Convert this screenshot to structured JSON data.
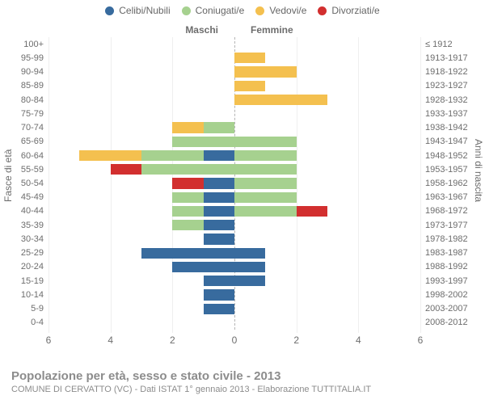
{
  "legend": {
    "items": [
      {
        "label": "Celibi/Nubili",
        "color": "#386b9e"
      },
      {
        "label": "Coniugati/e",
        "color": "#a6d18f"
      },
      {
        "label": "Vedovi/e",
        "color": "#f4c04f"
      },
      {
        "label": "Divorziati/e",
        "color": "#d22f2f"
      }
    ]
  },
  "chart": {
    "type": "population-pyramid",
    "header_male": "Maschi",
    "header_female": "Femmine",
    "y_title_left": "Fasce di età",
    "y_title_right": "Anni di nascita",
    "xlim": 6,
    "x_ticks": [
      6,
      4,
      2,
      0,
      2,
      4,
      6
    ],
    "x_tick_labels": [
      "6",
      "4",
      "2",
      "0",
      "2",
      "4",
      "6"
    ],
    "grid_color": "#efefef",
    "center_line_color": "#b5b5b5",
    "background_color": "#ffffff",
    "text_color": "#6d6d6d",
    "categories_colors": {
      "single": "#386b9e",
      "married": "#a6d18f",
      "widowed": "#f4c04f",
      "divorced": "#d22f2f"
    },
    "rows": [
      {
        "age": "100+",
        "birth": "≤ 1912",
        "m": {
          "single": 0,
          "married": 0,
          "widowed": 0,
          "divorced": 0
        },
        "f": {
          "single": 0,
          "married": 0,
          "widowed": 0,
          "divorced": 0
        }
      },
      {
        "age": "95-99",
        "birth": "1913-1917",
        "m": {
          "single": 0,
          "married": 0,
          "widowed": 0,
          "divorced": 0
        },
        "f": {
          "single": 0,
          "married": 0,
          "widowed": 1,
          "divorced": 0
        }
      },
      {
        "age": "90-94",
        "birth": "1918-1922",
        "m": {
          "single": 0,
          "married": 0,
          "widowed": 0,
          "divorced": 0
        },
        "f": {
          "single": 0,
          "married": 0,
          "widowed": 2,
          "divorced": 0
        }
      },
      {
        "age": "85-89",
        "birth": "1923-1927",
        "m": {
          "single": 0,
          "married": 0,
          "widowed": 0,
          "divorced": 0
        },
        "f": {
          "single": 0,
          "married": 0,
          "widowed": 1,
          "divorced": 0
        }
      },
      {
        "age": "80-84",
        "birth": "1928-1932",
        "m": {
          "single": 0,
          "married": 0,
          "widowed": 0,
          "divorced": 0
        },
        "f": {
          "single": 0,
          "married": 0,
          "widowed": 3,
          "divorced": 0
        }
      },
      {
        "age": "75-79",
        "birth": "1933-1937",
        "m": {
          "single": 0,
          "married": 0,
          "widowed": 0,
          "divorced": 0
        },
        "f": {
          "single": 0,
          "married": 0,
          "widowed": 0,
          "divorced": 0
        }
      },
      {
        "age": "70-74",
        "birth": "1938-1942",
        "m": {
          "single": 0,
          "married": 1,
          "widowed": 1,
          "divorced": 0
        },
        "f": {
          "single": 0,
          "married": 0,
          "widowed": 0,
          "divorced": 0
        }
      },
      {
        "age": "65-69",
        "birth": "1943-1947",
        "m": {
          "single": 0,
          "married": 2,
          "widowed": 0,
          "divorced": 0
        },
        "f": {
          "single": 0,
          "married": 2,
          "widowed": 0,
          "divorced": 0
        }
      },
      {
        "age": "60-64",
        "birth": "1948-1952",
        "m": {
          "single": 1,
          "married": 2,
          "widowed": 2,
          "divorced": 0
        },
        "f": {
          "single": 0,
          "married": 2,
          "widowed": 0,
          "divorced": 0
        }
      },
      {
        "age": "55-59",
        "birth": "1953-1957",
        "m": {
          "single": 0,
          "married": 3,
          "widowed": 0,
          "divorced": 1
        },
        "f": {
          "single": 0,
          "married": 2,
          "widowed": 0,
          "divorced": 0
        }
      },
      {
        "age": "50-54",
        "birth": "1958-1962",
        "m": {
          "single": 1,
          "married": 0,
          "widowed": 0,
          "divorced": 1
        },
        "f": {
          "single": 0,
          "married": 2,
          "widowed": 0,
          "divorced": 0
        }
      },
      {
        "age": "45-49",
        "birth": "1963-1967",
        "m": {
          "single": 1,
          "married": 1,
          "widowed": 0,
          "divorced": 0
        },
        "f": {
          "single": 0,
          "married": 2,
          "widowed": 0,
          "divorced": 0
        }
      },
      {
        "age": "40-44",
        "birth": "1968-1972",
        "m": {
          "single": 1,
          "married": 1,
          "widowed": 0,
          "divorced": 0
        },
        "f": {
          "single": 0,
          "married": 2,
          "widowed": 0,
          "divorced": 1
        }
      },
      {
        "age": "35-39",
        "birth": "1973-1977",
        "m": {
          "single": 1,
          "married": 1,
          "widowed": 0,
          "divorced": 0
        },
        "f": {
          "single": 0,
          "married": 0,
          "widowed": 0,
          "divorced": 0
        }
      },
      {
        "age": "30-34",
        "birth": "1978-1982",
        "m": {
          "single": 1,
          "married": 0,
          "widowed": 0,
          "divorced": 0
        },
        "f": {
          "single": 0,
          "married": 0,
          "widowed": 0,
          "divorced": 0
        }
      },
      {
        "age": "25-29",
        "birth": "1983-1987",
        "m": {
          "single": 3,
          "married": 0,
          "widowed": 0,
          "divorced": 0
        },
        "f": {
          "single": 1,
          "married": 0,
          "widowed": 0,
          "divorced": 0
        }
      },
      {
        "age": "20-24",
        "birth": "1988-1992",
        "m": {
          "single": 2,
          "married": 0,
          "widowed": 0,
          "divorced": 0
        },
        "f": {
          "single": 1,
          "married": 0,
          "widowed": 0,
          "divorced": 0
        }
      },
      {
        "age": "15-19",
        "birth": "1993-1997",
        "m": {
          "single": 1,
          "married": 0,
          "widowed": 0,
          "divorced": 0
        },
        "f": {
          "single": 1,
          "married": 0,
          "widowed": 0,
          "divorced": 0
        }
      },
      {
        "age": "10-14",
        "birth": "1998-2002",
        "m": {
          "single": 1,
          "married": 0,
          "widowed": 0,
          "divorced": 0
        },
        "f": {
          "single": 0,
          "married": 0,
          "widowed": 0,
          "divorced": 0
        }
      },
      {
        "age": "5-9",
        "birth": "2003-2007",
        "m": {
          "single": 1,
          "married": 0,
          "widowed": 0,
          "divorced": 0
        },
        "f": {
          "single": 0,
          "married": 0,
          "widowed": 0,
          "divorced": 0
        }
      },
      {
        "age": "0-4",
        "birth": "2008-2012",
        "m": {
          "single": 0,
          "married": 0,
          "widowed": 0,
          "divorced": 0
        },
        "f": {
          "single": 0,
          "married": 0,
          "widowed": 0,
          "divorced": 0
        }
      }
    ]
  },
  "footer": {
    "title": "Popolazione per età, sesso e stato civile - 2013",
    "subtitle": "COMUNE DI CERVATTO (VC) - Dati ISTAT 1° gennaio 2013 - Elaborazione TUTTITALIA.IT"
  }
}
